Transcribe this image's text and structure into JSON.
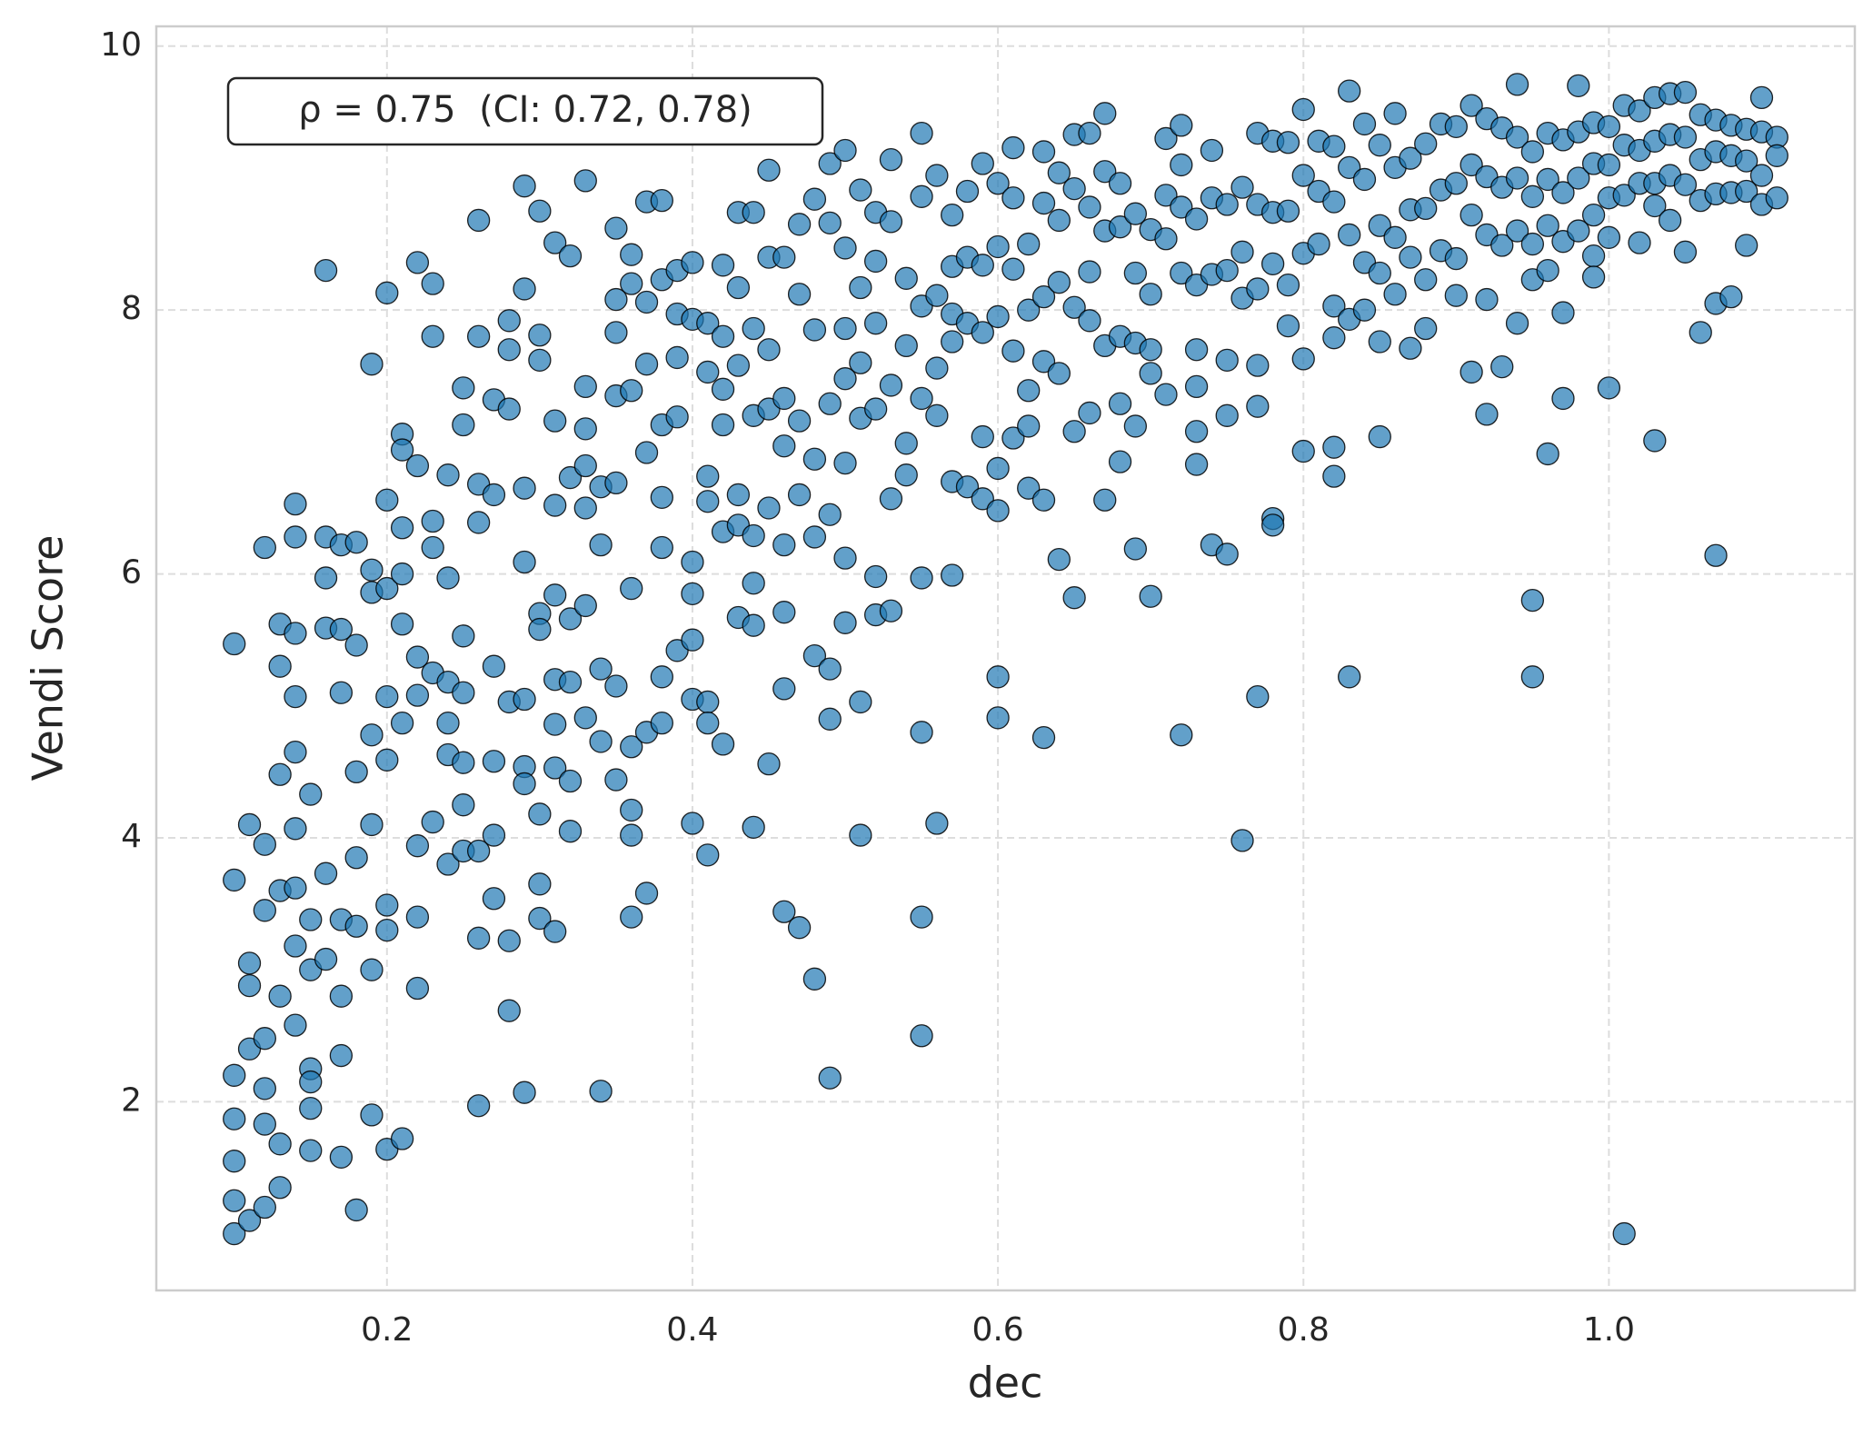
{
  "chart_data": {
    "type": "scatter",
    "xlabel": "dec",
    "ylabel": "Vendi Score",
    "annotation": "ρ = 0.75  (CI: 0.72, 0.78)",
    "color": "#1f77b4",
    "grid": true,
    "xlim": [
      0.049,
      1.161
    ],
    "ylim": [
      0.57,
      10.15
    ],
    "xticks": [
      0.2,
      0.4,
      0.6,
      0.8,
      {
        "value": 1,
        "label": "1.0"
      }
    ],
    "yticks": [
      2,
      4,
      6,
      8,
      10
    ],
    "x": [
      0.1,
      0.1,
      0.1,
      0.1,
      0.1,
      0.1,
      0.1,
      0.11,
      0.11,
      0.11,
      0.11,
      0.11,
      0.12,
      0.12,
      0.12,
      0.12,
      0.12,
      0.12,
      0.12,
      0.13,
      0.13,
      0.13,
      0.13,
      0.13,
      0.13,
      0.13,
      0.14,
      0.14,
      0.14,
      0.14,
      0.14,
      0.14,
      0.14,
      0.14,
      0.14,
      0.15,
      0.15,
      0.15,
      0.15,
      0.15,
      0.15,
      0.15,
      0.16,
      0.16,
      0.16,
      0.16,
      0.16,
      0.16,
      0.17,
      0.17,
      0.17,
      0.17,
      0.17,
      0.17,
      0.17,
      0.18,
      0.18,
      0.18,
      0.18,
      0.18,
      0.18,
      0.19,
      0.19,
      0.19,
      0.19,
      0.19,
      0.19,
      0.19,
      0.2,
      0.2,
      0.2,
      0.2,
      0.2,
      0.2,
      0.2,
      0.2,
      0.21,
      0.21,
      0.21,
      0.21,
      0.21,
      0.21,
      0.21,
      0.22,
      0.22,
      0.22,
      0.22,
      0.22,
      0.22,
      0.22,
      0.23,
      0.23,
      0.23,
      0.23,
      0.23,
      0.23,
      0.24,
      0.24,
      0.24,
      0.24,
      0.24,
      0.24,
      0.25,
      0.25,
      0.25,
      0.25,
      0.25,
      0.25,
      0.25,
      0.26,
      0.26,
      0.26,
      0.26,
      0.26,
      0.26,
      0.26,
      0.27,
      0.27,
      0.27,
      0.27,
      0.27,
      0.27,
      0.28,
      0.28,
      0.28,
      0.28,
      0.28,
      0.28,
      0.29,
      0.29,
      0.29,
      0.29,
      0.29,
      0.29,
      0.29,
      0.29,
      0.3,
      0.3,
      0.3,
      0.3,
      0.3,
      0.3,
      0.3,
      0.3,
      0.31,
      0.31,
      0.31,
      0.31,
      0.31,
      0.31,
      0.31,
      0.31,
      0.32,
      0.32,
      0.32,
      0.32,
      0.32,
      0.32,
      0.33,
      0.33,
      0.33,
      0.33,
      0.33,
      0.33,
      0.33,
      0.34,
      0.34,
      0.34,
      0.34,
      0.34,
      0.35,
      0.35,
      0.35,
      0.35,
      0.35,
      0.35,
      0.35,
      0.36,
      0.36,
      0.36,
      0.36,
      0.36,
      0.36,
      0.36,
      0.36,
      0.37,
      0.37,
      0.37,
      0.37,
      0.37,
      0.37,
      0.38,
      0.38,
      0.38,
      0.38,
      0.38,
      0.38,
      0.38,
      0.39,
      0.39,
      0.39,
      0.39,
      0.39,
      0.4,
      0.4,
      0.4,
      0.4,
      0.4,
      0.4,
      0.4,
      0.41,
      0.41,
      0.41,
      0.41,
      0.41,
      0.41,
      0.41,
      0.42,
      0.42,
      0.42,
      0.42,
      0.42,
      0.42,
      0.43,
      0.43,
      0.43,
      0.43,
      0.43,
      0.43,
      0.44,
      0.44,
      0.44,
      0.44,
      0.44,
      0.44,
      0.44,
      0.45,
      0.45,
      0.45,
      0.45,
      0.45,
      0.45,
      0.46,
      0.46,
      0.46,
      0.46,
      0.46,
      0.46,
      0.46,
      0.47,
      0.47,
      0.47,
      0.47,
      0.47,
      0.48,
      0.48,
      0.48,
      0.48,
      0.48,
      0.48,
      0.49,
      0.49,
      0.49,
      0.49,
      0.49,
      0.49,
      0.49,
      0.5,
      0.5,
      0.5,
      0.5,
      0.5,
      0.5,
      0.5,
      0.51,
      0.51,
      0.51,
      0.51,
      0.51,
      0.51,
      0.52,
      0.52,
      0.52,
      0.52,
      0.52,
      0.52,
      0.53,
      0.53,
      0.53,
      0.53,
      0.53,
      0.54,
      0.54,
      0.54,
      0.54,
      0.55,
      0.55,
      0.55,
      0.55,
      0.55,
      0.55,
      0.55,
      0.55,
      0.56,
      0.56,
      0.56,
      0.56,
      0.56,
      0.57,
      0.57,
      0.57,
      0.57,
      0.57,
      0.57,
      0.58,
      0.58,
      0.58,
      0.58,
      0.59,
      0.59,
      0.59,
      0.59,
      0.59,
      0.6,
      0.6,
      0.6,
      0.6,
      0.6,
      0.6,
      0.6,
      0.61,
      0.61,
      0.61,
      0.61,
      0.61,
      0.62,
      0.62,
      0.62,
      0.62,
      0.62,
      0.63,
      0.63,
      0.63,
      0.63,
      0.63,
      0.63,
      0.64,
      0.64,
      0.64,
      0.64,
      0.64,
      0.65,
      0.65,
      0.65,
      0.65,
      0.65,
      0.66,
      0.66,
      0.66,
      0.66,
      0.66,
      0.67,
      0.67,
      0.67,
      0.67,
      0.67,
      0.68,
      0.68,
      0.68,
      0.68,
      0.68,
      0.69,
      0.69,
      0.69,
      0.69,
      0.69,
      0.7,
      0.7,
      0.7,
      0.7,
      0.7,
      0.71,
      0.71,
      0.71,
      0.71,
      0.72,
      0.72,
      0.72,
      0.72,
      0.72,
      0.73,
      0.73,
      0.73,
      0.73,
      0.73,
      0.73,
      0.74,
      0.74,
      0.74,
      0.74,
      0.75,
      0.75,
      0.75,
      0.75,
      0.75,
      0.76,
      0.76,
      0.76,
      0.76,
      0.77,
      0.77,
      0.77,
      0.77,
      0.77,
      0.77,
      0.78,
      0.78,
      0.78,
      0.78,
      0.78,
      0.79,
      0.79,
      0.79,
      0.79,
      0.8,
      0.8,
      0.8,
      0.8,
      0.8,
      0.81,
      0.81,
      0.81,
      0.82,
      0.82,
      0.82,
      0.82,
      0.82,
      0.82,
      0.83,
      0.83,
      0.83,
      0.83,
      0.83,
      0.84,
      0.84,
      0.84,
      0.84,
      0.85,
      0.85,
      0.85,
      0.85,
      0.85,
      0.86,
      0.86,
      0.86,
      0.86,
      0.87,
      0.87,
      0.87,
      0.87,
      0.88,
      0.88,
      0.88,
      0.88,
      0.89,
      0.89,
      0.89,
      0.9,
      0.9,
      0.9,
      0.9,
      0.91,
      0.91,
      0.91,
      0.91,
      0.92,
      0.92,
      0.92,
      0.92,
      0.92,
      0.93,
      0.93,
      0.93,
      0.93,
      0.94,
      0.94,
      0.94,
      0.94,
      0.94,
      0.95,
      0.95,
      0.95,
      0.95,
      0.95,
      0.95,
      0.96,
      0.96,
      0.96,
      0.96,
      0.96,
      0.97,
      0.97,
      0.97,
      0.97,
      0.97,
      0.98,
      0.98,
      0.98,
      0.98,
      0.99,
      0.99,
      0.99,
      0.99,
      0.99,
      1.0,
      1.0,
      1.0,
      1.0,
      1.0,
      1.01,
      1.01,
      1.01,
      1.01,
      1.02,
      1.02,
      1.02,
      1.02,
      1.03,
      1.03,
      1.03,
      1.03,
      1.03,
      1.04,
      1.04,
      1.04,
      1.04,
      1.05,
      1.05,
      1.05,
      1.05,
      1.06,
      1.06,
      1.06,
      1.06,
      1.07,
      1.07,
      1.07,
      1.07,
      1.07,
      1.08,
      1.08,
      1.08,
      1.08,
      1.09,
      1.09,
      1.09,
      1.09,
      1.1,
      1.1,
      1.1,
      1.1,
      1.11,
      1.11,
      1.11
    ],
    "values": [
      5.47,
      3.68,
      2.2,
      1.87,
      1.55,
      1.0,
      1.25,
      4.1,
      3.05,
      2.88,
      2.4,
      1.1,
      6.2,
      3.95,
      3.45,
      2.48,
      2.1,
      1.83,
      1.2,
      5.62,
      5.3,
      4.48,
      3.6,
      2.8,
      1.68,
      1.35,
      6.53,
      6.28,
      5.55,
      5.07,
      4.65,
      4.07,
      3.62,
      3.18,
      2.58,
      4.33,
      3.38,
      3.0,
      2.25,
      2.15,
      1.95,
      1.63,
      8.3,
      6.28,
      5.97,
      5.59,
      3.73,
      3.08,
      6.22,
      5.58,
      5.1,
      3.38,
      2.8,
      2.35,
      1.58,
      6.24,
      5.46,
      4.5,
      3.85,
      3.33,
      1.18,
      7.59,
      6.03,
      5.86,
      4.78,
      4.1,
      3.0,
      1.9,
      8.13,
      6.56,
      5.89,
      5.07,
      4.59,
      3.49,
      3.3,
      1.64,
      7.06,
      6.94,
      6.35,
      6.0,
      5.62,
      4.87,
      1.72,
      8.36,
      6.82,
      5.37,
      5.08,
      3.94,
      3.4,
      2.86,
      8.2,
      7.8,
      6.4,
      6.2,
      5.25,
      4.12,
      6.75,
      5.97,
      5.18,
      4.87,
      4.63,
      3.8,
      7.41,
      7.13,
      5.53,
      5.1,
      4.57,
      4.25,
      3.9,
      8.68,
      7.8,
      6.68,
      6.39,
      3.9,
      3.24,
      1.97,
      7.32,
      6.6,
      5.3,
      4.58,
      4.02,
      3.54,
      7.7,
      7.92,
      7.25,
      5.03,
      3.22,
      2.69,
      8.94,
      8.16,
      6.65,
      6.09,
      5.05,
      4.54,
      4.41,
      2.07,
      8.75,
      7.81,
      7.62,
      5.7,
      5.58,
      4.18,
      3.65,
      3.39,
      8.51,
      7.16,
      6.52,
      5.84,
      5.2,
      4.86,
      4.53,
      3.29,
      8.41,
      6.73,
      5.66,
      5.18,
      4.43,
      4.05,
      8.98,
      7.42,
      7.1,
      6.82,
      6.5,
      5.76,
      4.91,
      6.66,
      6.22,
      5.28,
      4.73,
      2.08,
      8.62,
      8.08,
      7.83,
      7.35,
      6.69,
      5.15,
      4.44,
      8.42,
      8.2,
      7.39,
      5.89,
      4.69,
      4.21,
      4.02,
      3.4,
      8.82,
      8.06,
      7.59,
      6.92,
      4.8,
      3.58,
      8.83,
      8.23,
      7.13,
      6.58,
      6.2,
      5.22,
      4.87,
      8.3,
      7.97,
      7.64,
      7.19,
      5.42,
      8.36,
      7.93,
      6.09,
      5.85,
      5.5,
      5.05,
      4.11,
      7.9,
      7.53,
      6.74,
      6.55,
      5.03,
      4.87,
      3.87,
      8.34,
      7.8,
      7.4,
      7.13,
      6.32,
      4.71,
      8.74,
      8.17,
      7.58,
      6.6,
      6.37,
      5.67,
      8.74,
      7.86,
      7.2,
      6.29,
      5.93,
      5.61,
      4.08,
      9.06,
      8.4,
      7.7,
      7.25,
      6.5,
      4.56,
      8.4,
      7.33,
      6.97,
      6.22,
      5.71,
      5.13,
      3.44,
      8.65,
      8.12,
      7.16,
      6.6,
      3.32,
      8.84,
      7.85,
      6.87,
      6.28,
      5.38,
      2.93,
      9.11,
      8.66,
      7.29,
      6.45,
      5.28,
      4.9,
      2.18,
      9.21,
      8.47,
      7.86,
      7.48,
      6.84,
      6.12,
      5.63,
      8.91,
      8.17,
      7.6,
      7.18,
      5.03,
      4.02,
      8.74,
      8.37,
      7.9,
      7.25,
      5.98,
      5.69,
      9.14,
      8.67,
      7.43,
      6.57,
      5.72,
      8.24,
      7.73,
      6.99,
      6.75,
      9.34,
      8.86,
      8.03,
      7.33,
      5.97,
      4.8,
      3.4,
      2.5,
      9.02,
      8.11,
      7.56,
      7.2,
      4.11,
      8.72,
      8.33,
      7.97,
      7.76,
      6.7,
      5.99,
      8.9,
      8.4,
      7.9,
      6.66,
      9.11,
      8.34,
      7.83,
      7.04,
      6.57,
      8.96,
      8.48,
      7.95,
      6.8,
      6.48,
      5.22,
      4.91,
      9.23,
      8.85,
      8.31,
      7.69,
      7.03,
      8.5,
      8.0,
      7.39,
      7.12,
      6.65,
      9.2,
      8.81,
      8.1,
      7.61,
      6.56,
      4.76,
      9.04,
      8.68,
      8.21,
      7.52,
      6.11,
      9.33,
      8.92,
      8.02,
      7.08,
      5.82,
      9.34,
      8.78,
      8.29,
      7.92,
      7.22,
      9.49,
      9.05,
      8.6,
      7.73,
      6.56,
      8.96,
      8.63,
      7.8,
      7.29,
      6.85,
      8.73,
      8.28,
      7.75,
      7.12,
      6.19,
      8.61,
      8.12,
      7.7,
      7.52,
      5.83,
      9.3,
      8.87,
      8.54,
      7.36,
      9.4,
      9.1,
      8.78,
      8.28,
      4.78,
      8.69,
      8.19,
      7.7,
      7.42,
      7.08,
      6.83,
      9.21,
      8.85,
      8.27,
      6.22,
      8.8,
      8.3,
      7.62,
      7.2,
      6.15,
      8.93,
      8.44,
      8.09,
      3.98,
      9.34,
      8.8,
      8.16,
      7.58,
      7.27,
      5.07,
      9.28,
      8.74,
      8.35,
      6.42,
      6.37,
      9.27,
      8.75,
      8.19,
      7.88,
      9.52,
      9.02,
      8.43,
      7.63,
      6.93,
      9.28,
      8.9,
      8.5,
      9.24,
      8.82,
      8.03,
      7.79,
      6.96,
      6.74,
      9.66,
      9.08,
      8.57,
      7.93,
      5.22,
      9.41,
      8.99,
      8.36,
      8.0,
      9.25,
      8.64,
      8.28,
      7.76,
      7.04,
      9.49,
      9.08,
      8.55,
      8.12,
      9.15,
      8.76,
      8.4,
      7.71,
      9.26,
      8.77,
      8.23,
      7.86,
      9.41,
      8.91,
      8.45,
      9.39,
      8.96,
      8.39,
      8.11,
      9.55,
      9.1,
      8.72,
      7.53,
      9.45,
      9.01,
      8.57,
      8.08,
      7.21,
      9.38,
      8.93,
      8.49,
      7.57,
      9.71,
      9.31,
      9.0,
      8.6,
      7.9,
      9.2,
      8.86,
      8.5,
      8.23,
      5.8,
      5.22,
      9.34,
      8.99,
      8.64,
      8.3,
      6.91,
      9.29,
      8.89,
      8.52,
      7.98,
      7.33,
      9.7,
      9.35,
      9.0,
      8.6,
      9.42,
      9.11,
      8.72,
      8.41,
      8.25,
      9.39,
      9.1,
      8.85,
      8.55,
      7.41,
      9.55,
      9.25,
      8.87,
      1.0,
      9.51,
      9.21,
      8.96,
      8.51,
      9.61,
      9.28,
      8.96,
      8.79,
      7.01,
      9.64,
      9.33,
      9.02,
      8.68,
      9.65,
      9.31,
      8.95,
      8.44,
      9.48,
      9.14,
      8.83,
      7.83,
      9.44,
      9.2,
      8.88,
      8.05,
      6.14,
      9.4,
      9.17,
      8.89,
      8.1,
      9.37,
      9.13,
      8.9,
      8.49,
      9.61,
      9.35,
      9.02,
      8.8,
      9.31,
      9.17,
      8.85
    ]
  }
}
